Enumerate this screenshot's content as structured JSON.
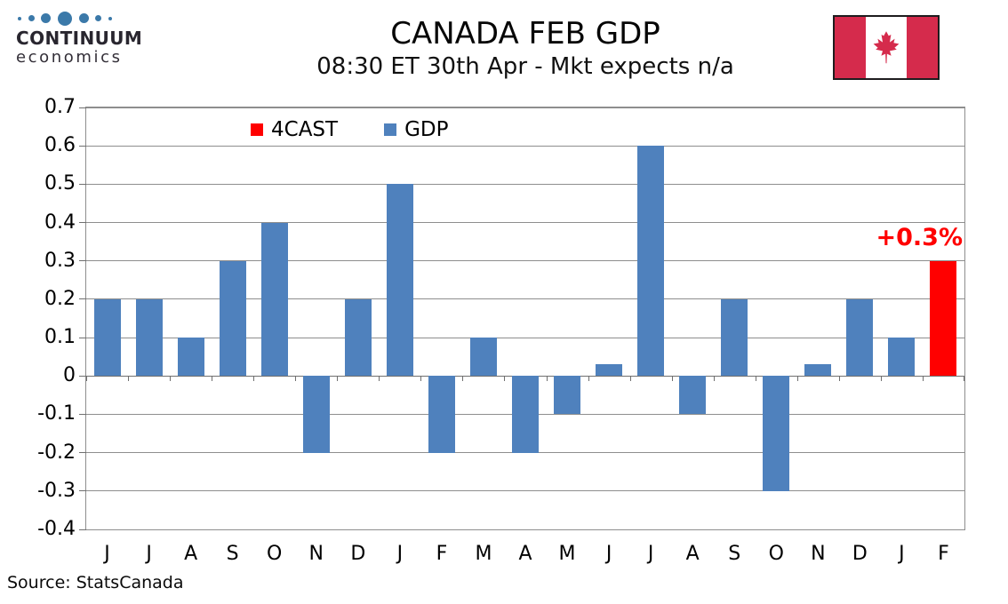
{
  "logo": {
    "name": "CONTINUUM",
    "sub": "economics",
    "dot_color": "#3b79a9"
  },
  "flag": {
    "name": "canada-flag",
    "red": "#d52b4c"
  },
  "chart_data": {
    "type": "bar",
    "title": "CANADA FEB GDP",
    "subtitle": "08:30 ET 30th Apr - Mkt expects n/a",
    "source": "Source: StatsCanada",
    "categories": [
      "J",
      "J",
      "A",
      "S",
      "O",
      "N",
      "D",
      "J",
      "F",
      "M",
      "A",
      "M",
      "J",
      "J",
      "A",
      "S",
      "O",
      "N",
      "D",
      "J",
      "F"
    ],
    "series": [
      {
        "name": "4CAST",
        "color": "#ff0000",
        "values": [
          null,
          null,
          null,
          null,
          null,
          null,
          null,
          null,
          null,
          null,
          null,
          null,
          null,
          null,
          null,
          null,
          null,
          null,
          null,
          null,
          0.3
        ]
      },
      {
        "name": "GDP",
        "color": "#4f81bd",
        "values": [
          0.2,
          0.2,
          0.1,
          0.3,
          0.4,
          -0.2,
          0.2,
          0.5,
          -0.2,
          0.1,
          -0.2,
          -0.1,
          0.03,
          0.6,
          -0.1,
          0.2,
          -0.3,
          0.03,
          0.2,
          0.1,
          null
        ]
      }
    ],
    "legend": [
      {
        "label": "4CAST",
        "color": "#ff0000"
      },
      {
        "label": "GDP",
        "color": "#4f81bd"
      }
    ],
    "legend_position": "top-inside-left",
    "annotation": {
      "text": "+0.3%",
      "color": "#ff0000"
    },
    "ylim": [
      -0.4,
      0.7
    ],
    "ytick_step": 0.1,
    "yticks": [
      "0.7",
      "0.6",
      "0.5",
      "0.4",
      "0.3",
      "0.2",
      "0.1",
      "0",
      "-0.1",
      "-0.2",
      "-0.3",
      "-0.4"
    ],
    "grid": true
  }
}
